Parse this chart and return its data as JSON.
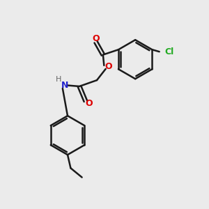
{
  "bg_color": "#ebebeb",
  "bond_color": "#1a1a1a",
  "O_color": "#dd0000",
  "N_color": "#2222cc",
  "Cl_color": "#22aa22",
  "H_color": "#666666",
  "bond_lw": 1.8,
  "figsize": [
    3.0,
    3.0
  ],
  "dpi": 100,
  "xlim": [
    0,
    10
  ],
  "ylim": [
    0,
    10
  ]
}
